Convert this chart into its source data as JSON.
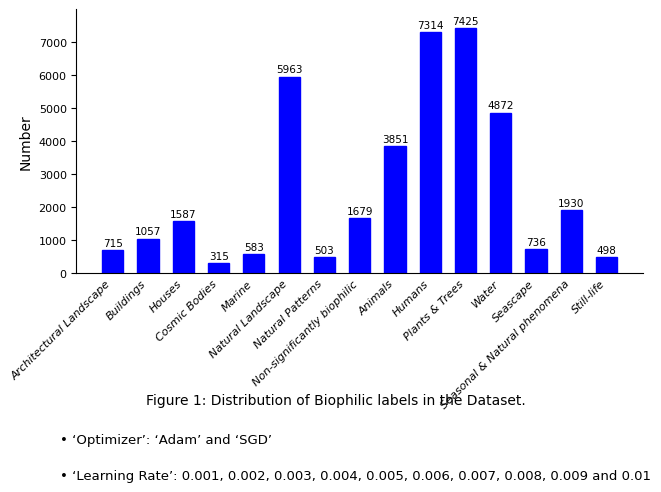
{
  "categories": [
    "Architectural Landscape",
    "Buildings",
    "Houses",
    "Cosmic Bodies",
    "Marine",
    "Natural Landscape",
    "Natural Patterns",
    "Non-significantly biophilic",
    "Animals",
    "Humans",
    "Plants & Trees",
    "Water",
    "Seascape",
    "Seasonal & Natural phenomena",
    "Still-life"
  ],
  "values": [
    715,
    1057,
    1587,
    315,
    583,
    5963,
    503,
    1679,
    3851,
    7314,
    7425,
    4872,
    736,
    1930,
    498
  ],
  "bar_color": "#0000FF",
  "ylabel": "Number",
  "ylim": [
    0,
    8000
  ],
  "yticks": [
    0,
    1000,
    2000,
    3000,
    4000,
    5000,
    6000,
    7000
  ],
  "caption": "Figure 1: Distribution of Biophilic labels in the Dataset.",
  "bullet1": "• ‘Optimizer’: ‘Adam’ and ‘SGD’",
  "bullet2": "• ‘Learning Rate’: 0.001, 0.002, 0.003, 0.004, 0.005, 0.006, 0.007, 0.008, 0.009 and 0.01",
  "bar_width": 0.6,
  "label_fontsize": 7.5,
  "tick_fontsize": 8,
  "ylabel_fontsize": 10,
  "caption_fontsize": 10,
  "bullet_fontsize": 9.5
}
